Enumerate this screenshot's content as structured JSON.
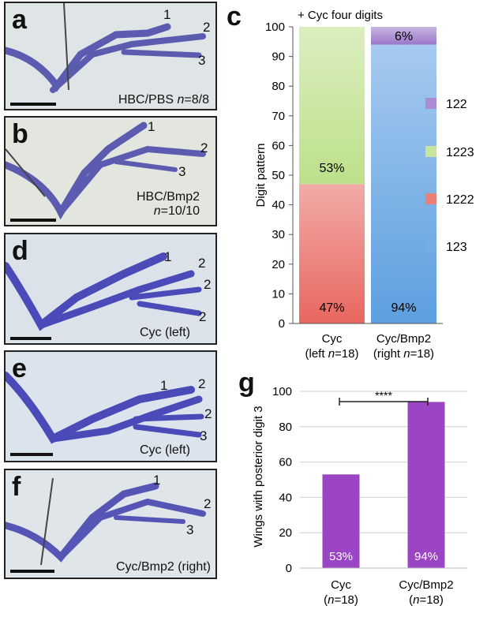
{
  "panels": [
    {
      "letter": "a",
      "caption_pre": "HBC/PBS ",
      "caption_n": "n",
      "caption_post": "=8/8",
      "digits": [
        "1",
        "2",
        "3"
      ]
    },
    {
      "letter": "b",
      "caption_line1": "HBC/Bmp2",
      "caption_n": "n",
      "caption_post": "=10/10",
      "digits": [
        "1",
        "2",
        "3"
      ]
    },
    {
      "letter": "d",
      "caption": "Cyc (left)",
      "digits": [
        "1",
        "2",
        "2",
        "2"
      ]
    },
    {
      "letter": "e",
      "caption": "Cyc (left)",
      "digits": [
        "1",
        "2",
        "2",
        "3"
      ]
    },
    {
      "letter": "f",
      "caption": "Cyc/Bmp2 (right)",
      "digits": [
        "1",
        "2",
        "3"
      ]
    }
  ],
  "chart_data": [
    {
      "panel_letter": "c",
      "type": "bar",
      "stacked": true,
      "title": "+ Cyc four digits",
      "ylabel": "Digit pattern",
      "ylim": [
        0,
        100
      ],
      "yticks": [
        0,
        10,
        20,
        30,
        40,
        50,
        60,
        70,
        80,
        90,
        100
      ],
      "categories": [
        {
          "line1": "Cyc",
          "line2_pre": "(left ",
          "line2_n": "n",
          "line2_post": "=18)"
        },
        {
          "line1": "Cyc/Bmp2",
          "line2_pre": "(right ",
          "line2_n": "n",
          "line2_post": "=18)"
        }
      ],
      "series": [
        {
          "name": "1222",
          "values": [
            47,
            0
          ],
          "color": "#e8675f"
        },
        {
          "name": "1223",
          "values": [
            53,
            0
          ],
          "color": "#bde08a"
        },
        {
          "name": "123",
          "values": [
            0,
            94
          ],
          "color": "#5d9fe0"
        },
        {
          "name": "122",
          "values": [
            0,
            6
          ],
          "color": "#9a78c9"
        }
      ],
      "data_labels": [
        {
          "category": 0,
          "text": "47%"
        },
        {
          "category": 0,
          "text": "53%"
        },
        {
          "category": 1,
          "text": "94%"
        },
        {
          "category": 1,
          "text": "6%"
        }
      ],
      "legend": [
        "122",
        "1223",
        "1222",
        "123"
      ],
      "legend_placement": "right"
    },
    {
      "panel_letter": "g",
      "type": "bar",
      "ylabel": "Wings with posterior digit 3",
      "ylim": [
        0,
        100
      ],
      "yticks": [
        0,
        20,
        40,
        60,
        80,
        100
      ],
      "grid": true,
      "categories": [
        {
          "line1": "Cyc",
          "line2_pre": "(",
          "line2_n": "n",
          "line2_post": "=18)"
        },
        {
          "line1": "Cyc/Bmp2",
          "line2_pre": "(",
          "line2_n": "n",
          "line2_post": "=18)"
        }
      ],
      "values": [
        53,
        94
      ],
      "data_labels": [
        "53%",
        "94%"
      ],
      "color": "#9b44c4",
      "significance": "****"
    }
  ]
}
